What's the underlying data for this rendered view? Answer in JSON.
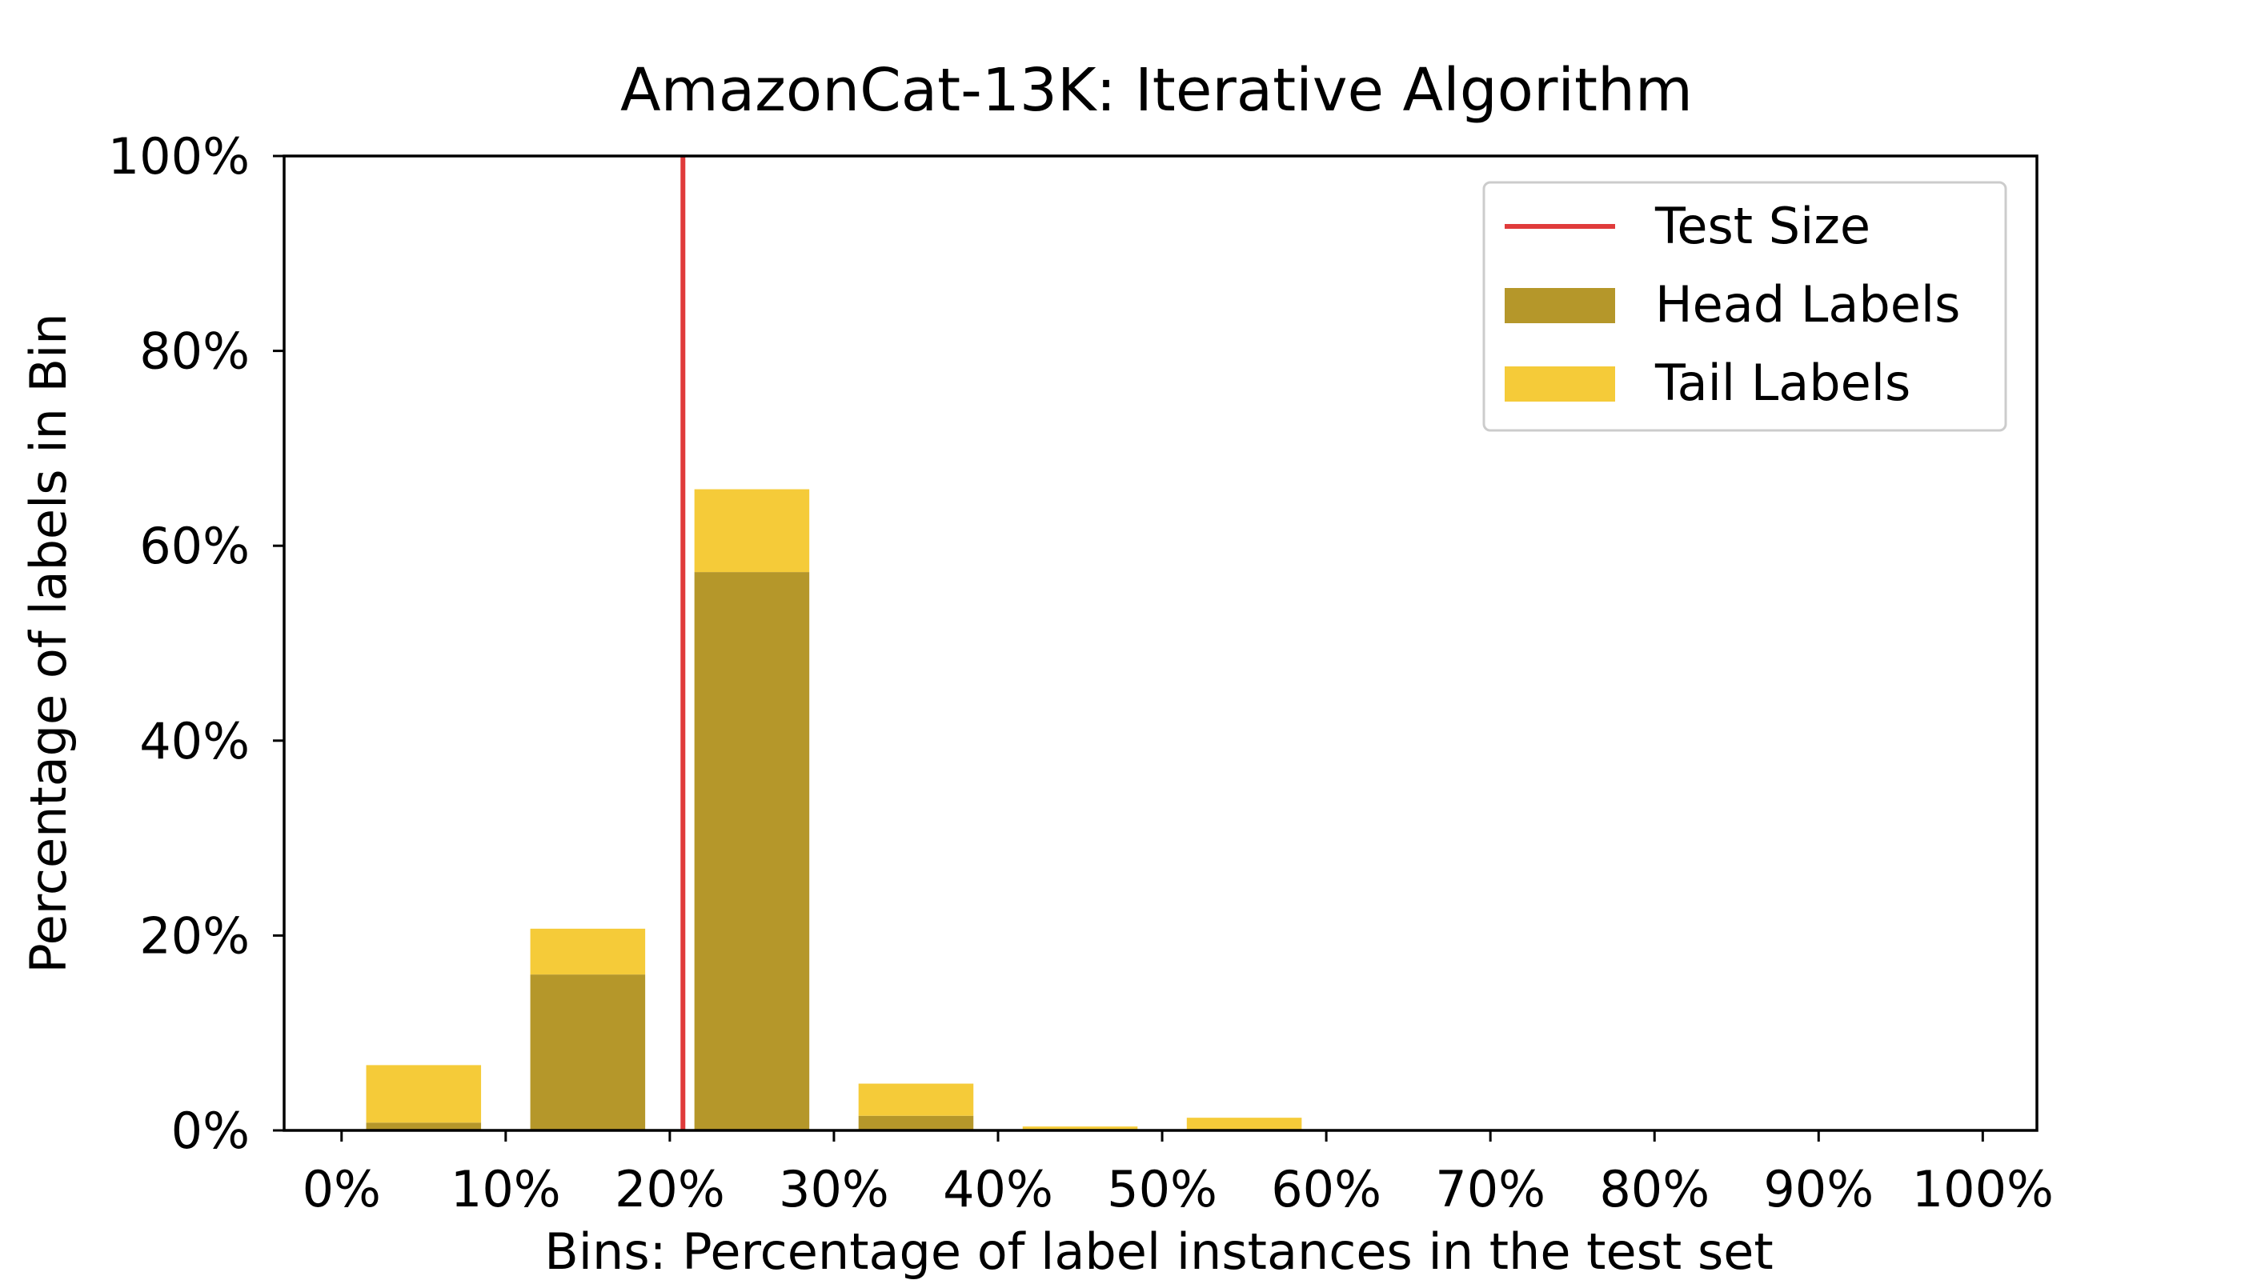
{
  "chart_data": {
    "type": "bar",
    "title": "AmazonCat-13K: Iterative Algorithm",
    "xlabel": "Bins: Percentage of label instances in the test set",
    "ylabel": "Percentage of labels in Bin",
    "x_tick_labels": [
      "0%",
      "10%",
      "20%",
      "30%",
      "40%",
      "50%",
      "60%",
      "70%",
      "80%",
      "90%",
      "100%"
    ],
    "y_tick_labels": [
      "0%",
      "20%",
      "40%",
      "60%",
      "80%",
      "100%"
    ],
    "xlim": [
      -3.5,
      103.3
    ],
    "ylim": [
      0,
      100
    ],
    "bin_centers": [
      5,
      15,
      25,
      35,
      45,
      55,
      65,
      75,
      85,
      95
    ],
    "bin_width": 7,
    "series": [
      {
        "name": "Head Labels",
        "color": "#b5972a",
        "values": [
          0.8,
          16.0,
          57.3,
          1.5,
          0.0,
          0.0,
          0.0,
          0.0,
          0.0,
          0.0
        ]
      },
      {
        "name": "Tail Labels",
        "color": "#f5cb39",
        "values": [
          5.9,
          4.7,
          8.5,
          3.3,
          0.4,
          1.3,
          0.0,
          0.0,
          0.0,
          0.0
        ]
      }
    ],
    "stacked": true,
    "reference_line": {
      "name": "Test Size",
      "x": 20.8,
      "color": "#e03b3b"
    },
    "legend": {
      "position": "top-right",
      "entries": [
        "Test Size",
        "Head Labels",
        "Tail Labels"
      ]
    },
    "grid": false
  }
}
